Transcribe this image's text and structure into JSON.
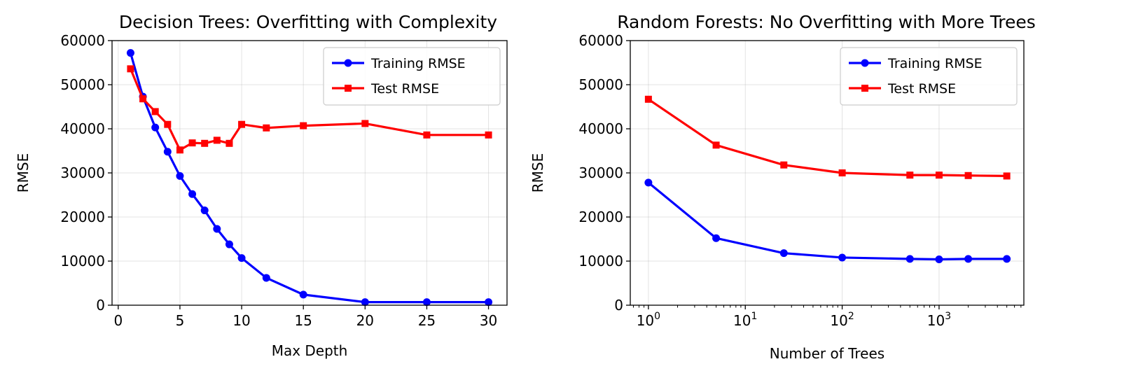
{
  "chart_data": [
    {
      "type": "line",
      "title": "Decision Trees: Overfitting with Complexity",
      "xlabel": "Max Depth",
      "ylabel": "RMSE",
      "xscale": "linear",
      "xlim": [
        -0.5,
        31.5
      ],
      "ylim": [
        0,
        60000
      ],
      "xticks": [
        0,
        5,
        10,
        15,
        20,
        25,
        30
      ],
      "yticks": [
        0,
        10000,
        20000,
        30000,
        40000,
        50000,
        60000
      ],
      "grid": true,
      "legend_position": "top-right",
      "series": [
        {
          "name": "Training RMSE",
          "color": "#0000ff",
          "marker": "circle",
          "x": [
            1,
            2,
            3,
            4,
            5,
            6,
            7,
            8,
            9,
            10,
            12,
            15,
            20,
            25,
            30
          ],
          "y": [
            57200,
            47300,
            40300,
            34800,
            29300,
            25200,
            21500,
            17300,
            13800,
            10700,
            6200,
            2400,
            700,
            700,
            700
          ]
        },
        {
          "name": "Test RMSE",
          "color": "#ff0000",
          "marker": "square",
          "x": [
            1,
            2,
            3,
            4,
            5,
            6,
            7,
            8,
            9,
            10,
            12,
            15,
            20,
            25,
            30
          ],
          "y": [
            53600,
            46800,
            43900,
            41000,
            35200,
            36800,
            36700,
            37400,
            36700,
            41000,
            40200,
            40700,
            41200,
            38600,
            38600
          ]
        }
      ]
    },
    {
      "type": "line",
      "title": "Random Forests: No Overfitting with More Trees",
      "xlabel": "Number of Trees",
      "ylabel": "RMSE",
      "xscale": "log",
      "xlim": [
        0.65,
        7500
      ],
      "ylim": [
        0,
        60000
      ],
      "xticks": [
        1,
        10,
        100,
        1000
      ],
      "xtick_labels": [
        "0",
        "1",
        "2",
        "3"
      ],
      "yticks": [
        0,
        10000,
        20000,
        30000,
        40000,
        50000,
        60000
      ],
      "grid": true,
      "legend_position": "top-right",
      "series": [
        {
          "name": "Training RMSE",
          "color": "#0000ff",
          "marker": "circle",
          "x": [
            1,
            5,
            25,
            100,
            500,
            1000,
            2000,
            5000
          ],
          "y": [
            27800,
            15200,
            11800,
            10800,
            10500,
            10400,
            10500,
            10500
          ]
        },
        {
          "name": "Test RMSE",
          "color": "#ff0000",
          "marker": "square",
          "x": [
            1,
            5,
            25,
            100,
            500,
            1000,
            2000,
            5000
          ],
          "y": [
            46700,
            36300,
            31800,
            30000,
            29500,
            29500,
            29400,
            29300
          ]
        }
      ]
    }
  ]
}
